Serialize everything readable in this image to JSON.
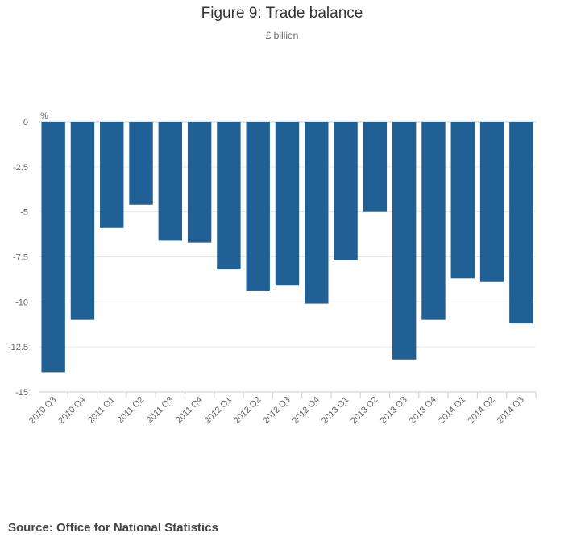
{
  "chart_data": {
    "type": "bar",
    "title": "Figure 9: Trade balance",
    "subtitle": "£ billion",
    "ylabel": "%",
    "xlabel": "",
    "categories": [
      "2010 Q3",
      "2010 Q4",
      "2011 Q1",
      "2011 Q2",
      "2011 Q3",
      "2011 Q4",
      "2012 Q1",
      "2012 Q2",
      "2012 Q3",
      "2012 Q4",
      "2013 Q1",
      "2013 Q2",
      "2013 Q3",
      "2013 Q4",
      "2014 Q1",
      "2014 Q2",
      "2014 Q3"
    ],
    "values": [
      -13.9,
      -11.0,
      -5.9,
      -4.6,
      -6.6,
      -6.7,
      -8.2,
      -9.4,
      -9.1,
      -10.1,
      -7.7,
      -5.0,
      -13.2,
      -11.0,
      -8.7,
      -8.9,
      -11.2
    ],
    "ylim": [
      -15,
      0
    ],
    "yticks": [
      0,
      -2.5,
      -5,
      -7.5,
      -10,
      -12.5,
      -15
    ],
    "ytick_labels": [
      "0",
      "-2.5",
      "-5",
      "-7.5",
      "-10",
      "-12.5",
      "-15"
    ],
    "grid": true,
    "bar_color": "#206095",
    "source": "Source: Office for National Statistics"
  }
}
